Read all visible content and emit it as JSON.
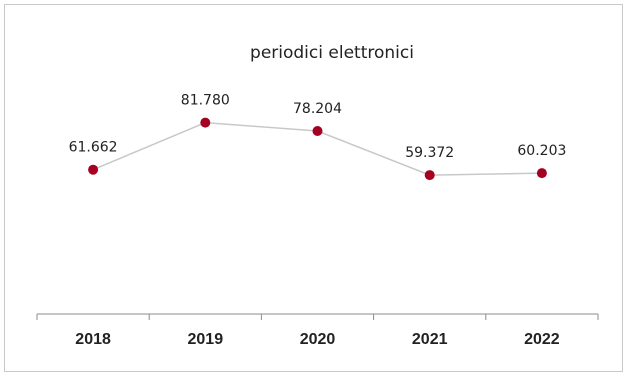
{
  "chart_data": {
    "type": "line",
    "title": "periodici elettronici",
    "categories": [
      "2018",
      "2019",
      "2020",
      "2021",
      "2022"
    ],
    "series": [
      {
        "values": [
          61662,
          81780,
          78204,
          59372,
          60203
        ],
        "labels": [
          "61.662",
          "81.780",
          "78.204",
          "59.372",
          "60.203"
        ]
      }
    ],
    "xlabel": "",
    "ylabel": "",
    "ylim": [
      0,
      100000
    ],
    "grid": false,
    "legend": "none"
  },
  "colors": {
    "marker": "#a50021",
    "line": "#c8c8c8",
    "axis": "#8c8c8c",
    "text": "#222222"
  }
}
